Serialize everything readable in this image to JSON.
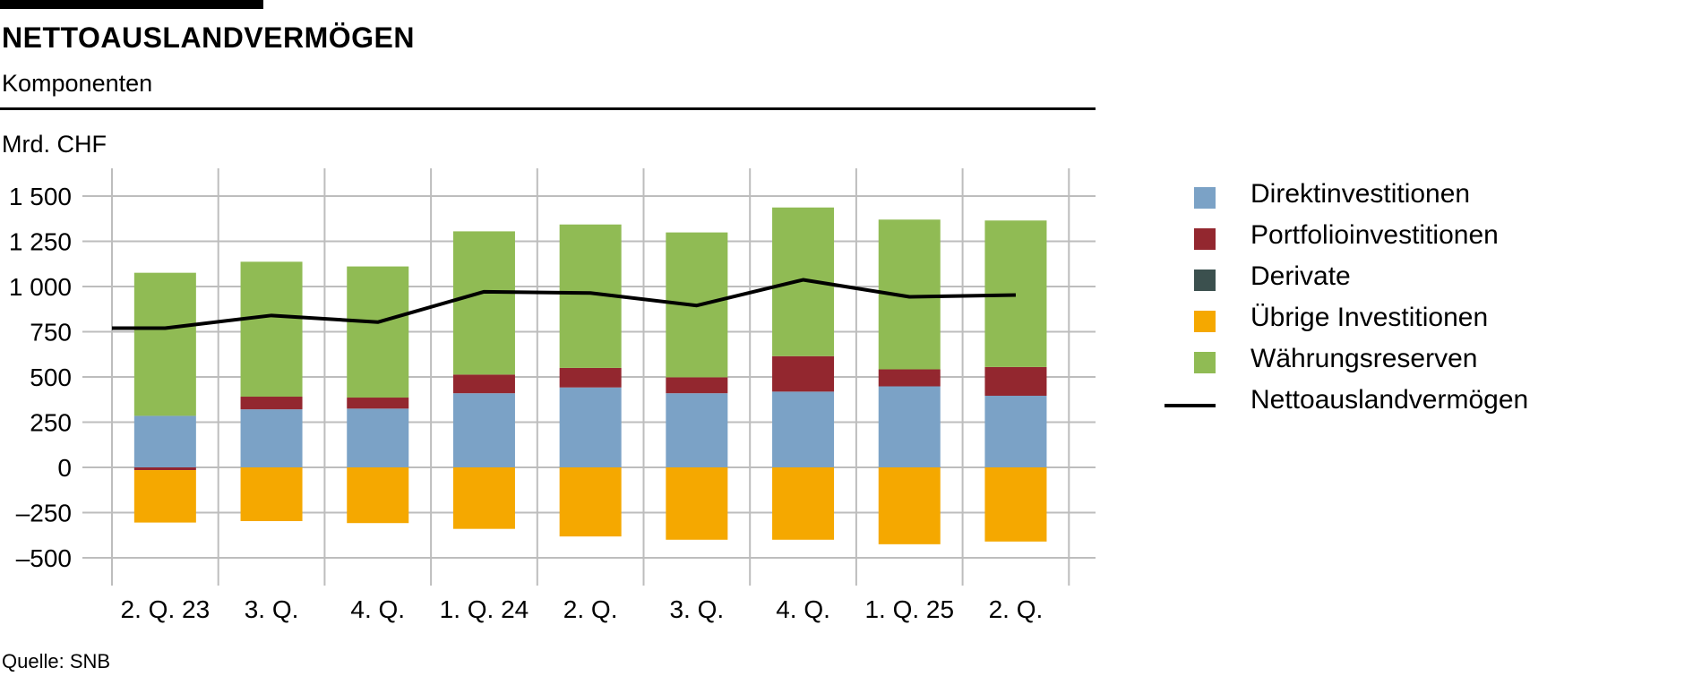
{
  "header": {
    "title": "NETTOAUSLANDVERMÖGEN",
    "subtitle": "Komponenten",
    "unit": "Mrd. CHF"
  },
  "footer": {
    "source": "Quelle: SNB"
  },
  "chart_data": {
    "type": "bar",
    "stacked": true,
    "title": "NETTOAUSLANDVERMÖGEN",
    "subtitle": "Komponenten",
    "ylabel": "Mrd. CHF",
    "xlabel": "",
    "ylim": [
      -500,
      1500
    ],
    "yticks": [
      1500,
      1250,
      1000,
      750,
      500,
      250,
      0,
      -250,
      -500
    ],
    "ytick_labels": [
      "1 500",
      "1 250",
      "1 000",
      "750",
      "500",
      "250",
      "0",
      "–250",
      "–500"
    ],
    "grid": true,
    "legend_position": "right",
    "categories": [
      "2. Q. 23",
      "3. Q.",
      "4. Q.",
      "1. Q. 24",
      "2. Q.",
      "3. Q.",
      "4. Q.",
      "1. Q. 25",
      "2. Q."
    ],
    "series": [
      {
        "name": "Direktinvestitionen",
        "color": "#7ba2c6",
        "values": [
          285,
          321,
          325,
          410,
          442,
          410,
          419,
          448,
          396
        ]
      },
      {
        "name": "Portfolioinvestitionen",
        "color": "#93272f",
        "values": [
          -15,
          70,
          61,
          103,
          108,
          88,
          196,
          94,
          159
        ]
      },
      {
        "name": "Derivate",
        "color": "#3b504e",
        "values": [
          0,
          0,
          0,
          0,
          0,
          0,
          0,
          0,
          0
        ]
      },
      {
        "name": "Übrige Investitionen",
        "color": "#f5a800",
        "values": [
          -290,
          -297,
          -308,
          -340,
          -382,
          -400,
          -400,
          -425,
          -410
        ]
      },
      {
        "name": "Währungsreserven",
        "color": "#90bb54",
        "values": [
          791,
          746,
          725,
          792,
          793,
          801,
          822,
          828,
          810
        ]
      }
    ],
    "line": {
      "name": "Nettoauslandvermögen",
      "color": "#000000",
      "values": [
        770,
        840,
        803,
        971,
        964,
        895,
        1037,
        943,
        953
      ]
    }
  }
}
